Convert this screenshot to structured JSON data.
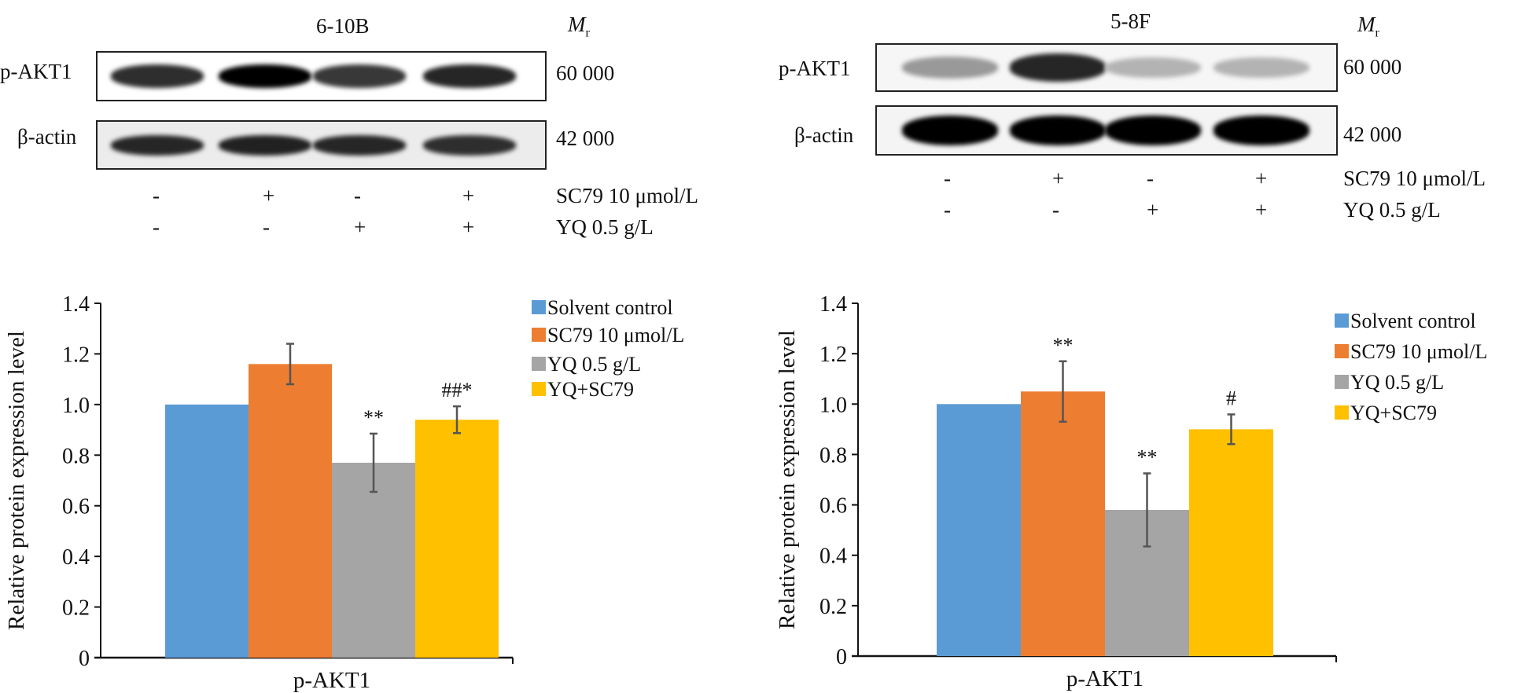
{
  "figure": {
    "panels": [
      {
        "cell_line": "6-10B",
        "mr_label": "M",
        "mr_sub": "r",
        "blots": [
          {
            "label": "p-AKT1",
            "mw": "60 000",
            "intensities": [
              0.82,
              1.0,
              0.78,
              0.85
            ]
          },
          {
            "label": "β-actin",
            "mw": "42 000",
            "intensities": [
              0.85,
              0.87,
              0.85,
              0.82
            ]
          }
        ],
        "treatments": [
          {
            "label": "SC79 10 μmol/L",
            "signs": [
              "-",
              "+",
              "-",
              "+"
            ]
          },
          {
            "label": "YQ 0.5 g/L",
            "signs": [
              "-",
              "-",
              "+",
              "+"
            ]
          }
        ]
      },
      {
        "cell_line": "5-8F",
        "mr_label": "M",
        "mr_sub": "r",
        "blots": [
          {
            "label": "p-AKT1",
            "mw": "60 000",
            "intensities": [
              0.4,
              0.85,
              0.3,
              0.3
            ]
          },
          {
            "label": "β-actin",
            "mw": "42 000",
            "intensities": [
              1.0,
              1.0,
              1.0,
              1.0
            ]
          }
        ],
        "treatments": [
          {
            "label": "SC79 10 μmol/L",
            "signs": [
              "-",
              "+",
              "-",
              "+"
            ]
          },
          {
            "label": "YQ 0.5 g/L",
            "signs": [
              "-",
              "-",
              "+",
              "+"
            ]
          }
        ]
      }
    ]
  },
  "chart_data": [
    {
      "type": "bar",
      "title": "",
      "panel": "6-10B",
      "categories": [
        "p-AKT1"
      ],
      "xlabel": "p-AKT1",
      "ylabel": "Relative protein expression level",
      "ylim": [
        0,
        1.4
      ],
      "yticks": [
        "0",
        "0.2",
        "0.4",
        "0.6",
        "0.8",
        "1.0",
        "1.2",
        "1.4"
      ],
      "grid": false,
      "legend_position": "top-right",
      "series": [
        {
          "name": "Solvent control",
          "color": "#5B9BD5",
          "values": [
            1.0
          ],
          "error": [
            0
          ],
          "annotation": ""
        },
        {
          "name": "SC79 10 μmol/L",
          "color": "#ED7D31",
          "values": [
            1.16
          ],
          "error": [
            0.08
          ],
          "annotation": ""
        },
        {
          "name": "YQ 0.5 g/L",
          "color": "#A5A5A5",
          "values": [
            0.77
          ],
          "error": [
            0.115
          ],
          "annotation": "**"
        },
        {
          "name": "YQ+SC79",
          "color": "#FFC000",
          "values": [
            0.94
          ],
          "error": [
            0.053
          ],
          "annotation": "##*"
        }
      ]
    },
    {
      "type": "bar",
      "title": "",
      "panel": "5-8F",
      "categories": [
        "p-AKT1"
      ],
      "xlabel": "p-AKT1",
      "ylabel": "Relative protein expression level",
      "ylim": [
        0,
        1.4
      ],
      "yticks": [
        "0",
        "0.2",
        "0.4",
        "0.6",
        "0.8",
        "1.0",
        "1.2",
        "1.4"
      ],
      "grid": false,
      "legend_position": "top-right",
      "series": [
        {
          "name": "Solvent control",
          "color": "#5B9BD5",
          "values": [
            1.0
          ],
          "error": [
            0
          ],
          "annotation": ""
        },
        {
          "name": "SC79 10 μmol/L",
          "color": "#ED7D31",
          "values": [
            1.05
          ],
          "error": [
            0.12
          ],
          "annotation": "**"
        },
        {
          "name": "YQ 0.5 g/L",
          "color": "#A5A5A5",
          "values": [
            0.58
          ],
          "error": [
            0.145
          ],
          "annotation": "**"
        },
        {
          "name": "YQ+SC79",
          "color": "#FFC000",
          "values": [
            0.9
          ],
          "error": [
            0.059
          ],
          "annotation": "#"
        }
      ]
    }
  ]
}
